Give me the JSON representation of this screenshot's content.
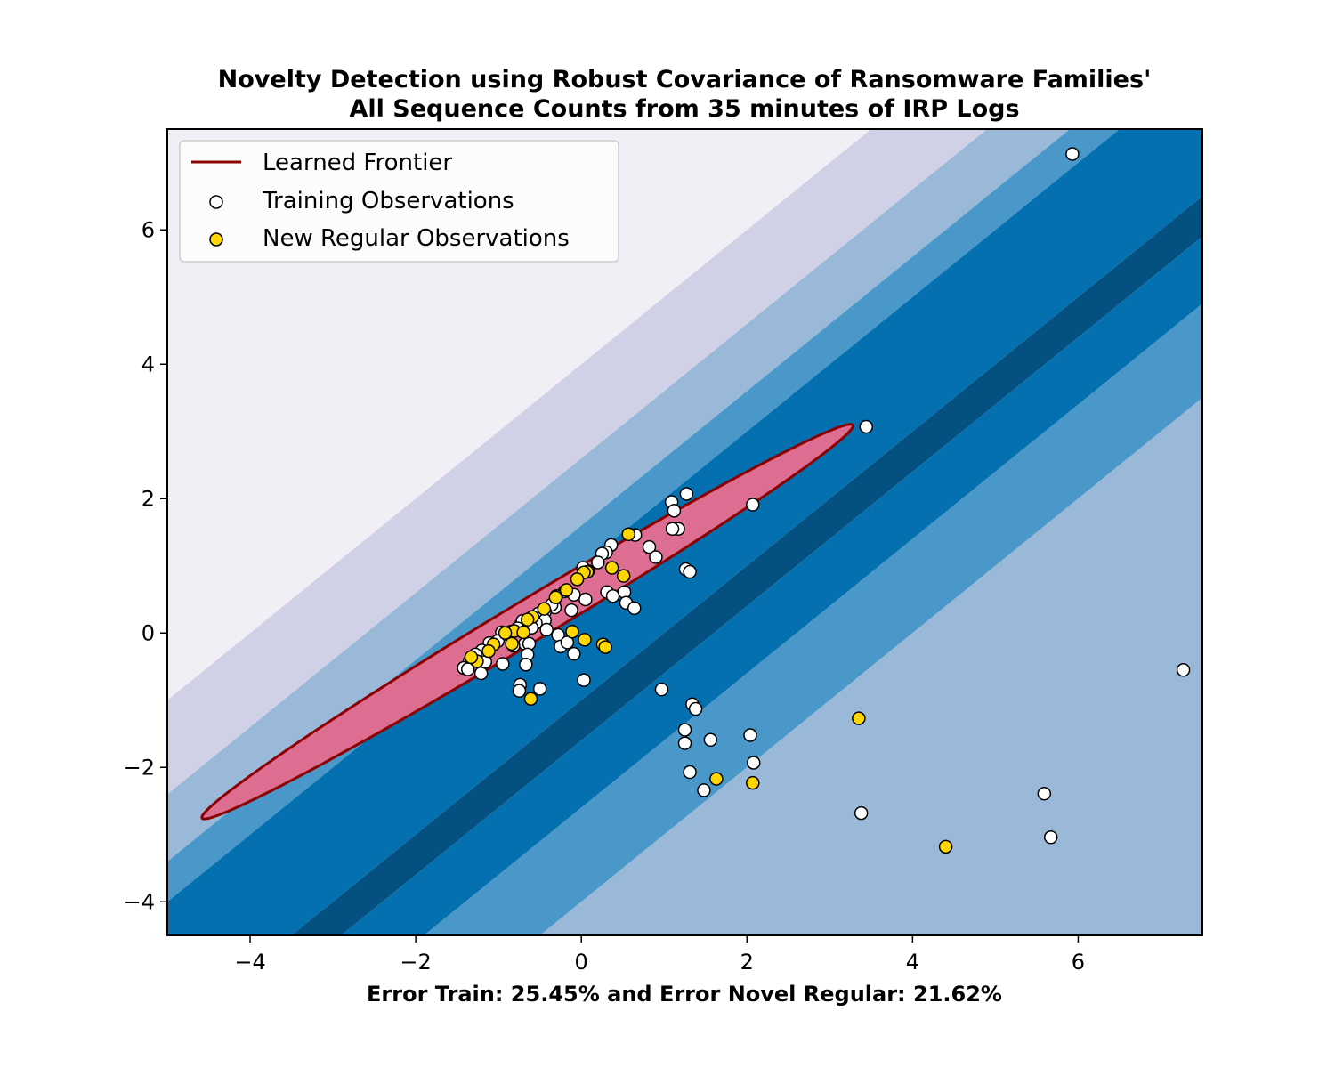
{
  "chart_data": {
    "type": "scatter",
    "title": [
      "Novelty Detection using Robust Covariance of Ransomware Families'",
      "All Sequence Counts from 35 minutes of IRP Logs"
    ],
    "xlabel": "Error Train: 25.45% and Error Novel Regular: 21.62%",
    "ylabel": "",
    "xlim": [
      -5,
      7.5
    ],
    "ylim": [
      -4.5,
      7.5
    ],
    "xticks": [
      -4,
      -2,
      0,
      2,
      4,
      6
    ],
    "yticks": [
      -4,
      -2,
      0,
      2,
      4,
      6
    ],
    "xtick_labels": [
      "−4",
      "−2",
      "0",
      "2",
      "4",
      "6"
    ],
    "ytick_labels": [
      "−4",
      "−2",
      "0",
      "2",
      "4",
      "6"
    ],
    "grid": false,
    "background": {
      "description_free": true,
      "levels": [
        -4,
        -2.6,
        -1.6,
        -1,
        1,
        1.6,
        2.6,
        4
      ],
      "colors": [
        "#f1eef6",
        "#d0d1e6",
        "#9ab9d9",
        "#4a98c9",
        "#0570b0",
        "#045080",
        "#0570b0",
        "#4a98c9",
        "#9ab9d9",
        "#d0d1e6",
        "#f1eef6"
      ]
    },
    "frontier": {
      "center": [
        -0.65,
        0.17
      ],
      "angle_deg": 36.7,
      "semi_major": 4.9,
      "semi_minor": 0.29,
      "fill": "#dd6e91",
      "stroke": "#8b0000"
    },
    "legend": {
      "position": "upper-left",
      "entries": [
        "Learned Frontier",
        "Training Observations",
        "New Regular Observations"
      ]
    },
    "series": [
      {
        "name": "Training Observations",
        "color": "#ffffff",
        "points": [
          [
            5.93,
            7.13
          ],
          [
            3.44,
            3.07
          ],
          [
            2.07,
            1.91
          ],
          [
            1.27,
            2.07
          ],
          [
            1.09,
            1.95
          ],
          [
            1.12,
            1.82
          ],
          [
            1.17,
            1.55
          ],
          [
            1.1,
            1.55
          ],
          [
            0.65,
            1.46
          ],
          [
            0.82,
            1.28
          ],
          [
            0.9,
            1.13
          ],
          [
            1.26,
            0.95
          ],
          [
            1.31,
            0.91
          ],
          [
            0.36,
            1.31
          ],
          [
            0.3,
            1.2
          ],
          [
            0.25,
            1.18
          ],
          [
            0.2,
            1.05
          ],
          [
            0.08,
            0.92
          ],
          [
            0.02,
            0.97
          ],
          [
            0.31,
            0.61
          ],
          [
            0.52,
            0.61
          ],
          [
            0.38,
            0.55
          ],
          [
            0.54,
            0.45
          ],
          [
            0.64,
            0.37
          ],
          [
            0.05,
            0.5
          ],
          [
            -0.09,
            0.57
          ],
          [
            -0.12,
            0.34
          ],
          [
            -0.2,
            0.62
          ],
          [
            -0.3,
            0.55
          ],
          [
            -0.32,
            0.38
          ],
          [
            -0.36,
            0.42
          ],
          [
            -0.44,
            0.32
          ],
          [
            -0.52,
            0.29
          ],
          [
            -0.44,
            0.19
          ],
          [
            -0.55,
            0.15
          ],
          [
            -0.42,
            0.05
          ],
          [
            -0.6,
            0.08
          ],
          [
            -0.73,
            0.13
          ],
          [
            -0.71,
            0.18
          ],
          [
            -0.77,
            0.07
          ],
          [
            -0.85,
            0.02
          ],
          [
            -0.93,
            -0.01
          ],
          [
            -0.96,
            0.01
          ],
          [
            -0.68,
            -0.16
          ],
          [
            -0.63,
            -0.16
          ],
          [
            -0.82,
            -0.19
          ],
          [
            -1.01,
            -0.12
          ],
          [
            -1.11,
            -0.15
          ],
          [
            -1.18,
            -0.33
          ],
          [
            -1.2,
            -0.26
          ],
          [
            -1.28,
            -0.32
          ],
          [
            -1.35,
            -0.42
          ],
          [
            -1.42,
            -0.52
          ],
          [
            -1.37,
            -0.54
          ],
          [
            -1.21,
            -0.6
          ],
          [
            -1.16,
            -0.43
          ],
          [
            -0.95,
            -0.46
          ],
          [
            -0.65,
            -0.32
          ],
          [
            -0.67,
            -0.47
          ],
          [
            -0.74,
            -0.77
          ],
          [
            -0.75,
            -0.86
          ],
          [
            -0.5,
            -0.83
          ],
          [
            -0.28,
            -0.03
          ],
          [
            -0.25,
            -0.2
          ],
          [
            -0.17,
            -0.14
          ],
          [
            -0.09,
            -0.31
          ],
          [
            0.03,
            -0.7
          ],
          [
            0.97,
            -0.84
          ],
          [
            1.34,
            -1.06
          ],
          [
            1.38,
            -1.13
          ],
          [
            1.25,
            -1.44
          ],
          [
            1.25,
            -1.64
          ],
          [
            1.56,
            -1.59
          ],
          [
            2.04,
            -1.52
          ],
          [
            2.08,
            -1.93
          ],
          [
            1.31,
            -2.07
          ],
          [
            1.48,
            -2.34
          ],
          [
            3.38,
            -2.68
          ],
          [
            5.59,
            -2.39
          ],
          [
            5.67,
            -3.04
          ],
          [
            7.27,
            -0.55
          ]
        ]
      },
      {
        "name": "New Regular Observations",
        "color": "#ffd700",
        "points": [
          [
            0.57,
            1.47
          ],
          [
            0.51,
            0.85
          ],
          [
            0.37,
            0.97
          ],
          [
            0.07,
            0.91
          ],
          [
            0.03,
            0.9
          ],
          [
            -0.05,
            0.8
          ],
          [
            -0.18,
            0.64
          ],
          [
            -0.31,
            0.53
          ],
          [
            -0.45,
            0.36
          ],
          [
            -0.59,
            0.24
          ],
          [
            -0.65,
            0.2
          ],
          [
            -0.81,
            0.03
          ],
          [
            -0.92,
            0.0
          ],
          [
            -0.7,
            0.01
          ],
          [
            -0.84,
            -0.16
          ],
          [
            -1.06,
            -0.17
          ],
          [
            -1.12,
            -0.27
          ],
          [
            -1.26,
            -0.42
          ],
          [
            -1.33,
            -0.36
          ],
          [
            -0.61,
            -0.98
          ],
          [
            -0.11,
            0.02
          ],
          [
            0.04,
            -0.1
          ],
          [
            0.26,
            -0.17
          ],
          [
            0.29,
            -0.21
          ],
          [
            3.35,
            -1.27
          ],
          [
            1.63,
            -2.17
          ],
          [
            2.07,
            -2.23
          ],
          [
            4.4,
            -3.18
          ]
        ]
      }
    ]
  }
}
